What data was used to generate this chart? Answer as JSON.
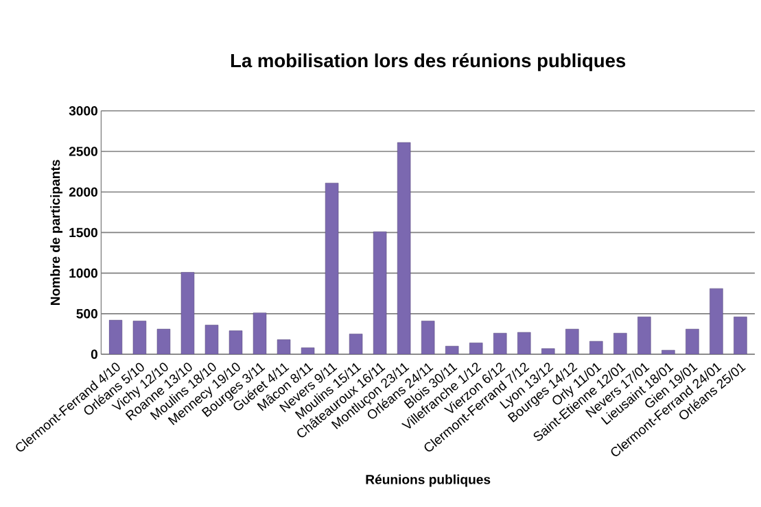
{
  "chart_data": {
    "type": "bar",
    "title": "La mobilisation lors des réunions publiques",
    "xlabel": "Réunions publiques",
    "ylabel": "Nombre de participants",
    "categories": [
      "Clermont-Ferrand 4/10",
      "Orléans 5/10",
      "Vichy 12/10",
      "Roanne 13/10",
      "Moulins 18/10",
      "Mennecy 19/10",
      "Bourges 3/11",
      "Guéret 4/11",
      "Mâcon 8/11",
      "Nevers 9/11",
      "Moulins 15/11",
      "Châteauroux 16/11",
      "Montluçon 23/11",
      "Orléans 24/11",
      "Blois 30/11",
      "Villefranche 1/12",
      "Vierzon 6/12",
      "Clermont-Ferrand 7/12",
      "Lyon 13/12",
      "Bourges 14/12",
      "Orly 11/01",
      "Saint-Etienne 12/01",
      "Nevers 17/01",
      "Lieusaint 18/01",
      "Gien 19/01",
      "Clermont-Ferrand 24/01",
      "Orléans 25/01"
    ],
    "values": [
      420,
      410,
      310,
      1010,
      360,
      290,
      510,
      180,
      80,
      2110,
      250,
      1510,
      2610,
      410,
      100,
      140,
      260,
      270,
      70,
      310,
      160,
      260,
      460,
      50,
      310,
      810,
      460
    ],
    "color": "#7b68b0",
    "ylim": [
      0,
      3000
    ],
    "yticks": [
      0,
      500,
      1000,
      1500,
      2000,
      2500,
      3000
    ],
    "grid": "y"
  }
}
